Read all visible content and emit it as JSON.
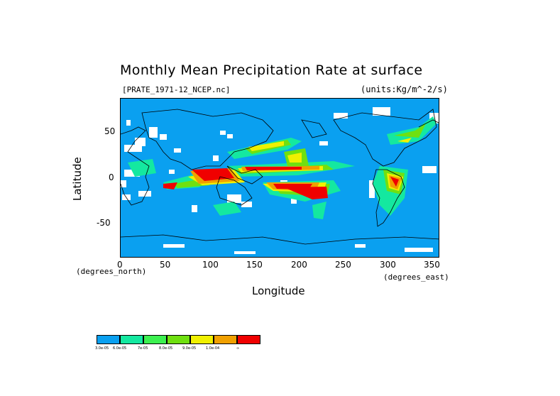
{
  "title": "Monthly Mean Precipitation Rate at surface",
  "subtitle_left": "[PRATE_1971-12_NCEP.nc]",
  "subtitle_right": "(units:Kg/m^-2/s)",
  "axes": {
    "x_title": "Longitude",
    "y_title": "Latitude",
    "x_unit_left": "(degrees_north)",
    "x_unit_right": "(degrees_east)",
    "x_ticks": [
      "0",
      "50",
      "100",
      "150",
      "200",
      "250",
      "300",
      "350"
    ],
    "y_ticks": [
      "50",
      "0",
      "-50"
    ],
    "x_range": [
      0,
      360
    ],
    "y_range": [
      -90,
      90
    ]
  },
  "colors": {
    "ocean_base": "#0aa0f0",
    "scale": [
      "#0aa0f0",
      "#14e8a0",
      "#3cf050",
      "#6fe010",
      "#f0f000",
      "#f0a000",
      "#f00000"
    ],
    "missing": "#ffffff",
    "coast": "#000000"
  },
  "legend": {
    "labels": [
      "3.0e-05",
      "6.0e-05",
      "7e-05",
      "8.0e-05",
      "9.0e-05",
      "1.0e-04",
      "∞"
    ]
  }
}
